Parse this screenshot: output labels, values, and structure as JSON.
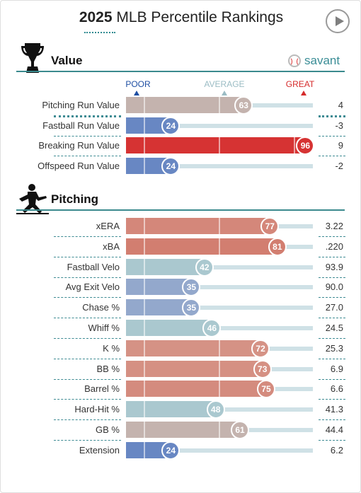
{
  "header": {
    "title_year": "2025",
    "title_rest": "MLB Percentile Rankings"
  },
  "brand": {
    "name": "savant",
    "color": "#3a8d96"
  },
  "scale": {
    "poor": "POOR",
    "average": "AVERAGE",
    "great": "GREAT",
    "poor_color": "#1f4fa3",
    "average_color": "#9bbcc4",
    "great_color": "#d52b2b"
  },
  "icons": {
    "value_section": "trophy-icon",
    "pitching_section": "pitcher-icon",
    "play": "play-icon",
    "brand": "baseball-icon"
  },
  "chart_data": {
    "type": "bar",
    "x_range": [
      0,
      100
    ],
    "sections": [
      {
        "title": "Value",
        "rows": [
          {
            "label": "Pitching Run Value",
            "percentile": 63,
            "value": "4"
          },
          {
            "label": "Fastball Run Value",
            "percentile": 24,
            "value": "-3"
          },
          {
            "label": "Breaking Run Value",
            "percentile": 96,
            "value": "9"
          },
          {
            "label": "Offspeed Run Value",
            "percentile": 24,
            "value": "-2"
          }
        ]
      },
      {
        "title": "Pitching",
        "rows": [
          {
            "label": "xERA",
            "percentile": 77,
            "value": "3.22"
          },
          {
            "label": "xBA",
            "percentile": 81,
            "value": ".220"
          },
          {
            "label": "Fastball Velo",
            "percentile": 42,
            "value": "93.9"
          },
          {
            "label": "Avg Exit Velo",
            "percentile": 35,
            "value": "90.0"
          },
          {
            "label": "Chase %",
            "percentile": 35,
            "value": "27.0"
          },
          {
            "label": "Whiff %",
            "percentile": 46,
            "value": "24.5"
          },
          {
            "label": "K %",
            "percentile": 72,
            "value": "25.3"
          },
          {
            "label": "BB %",
            "percentile": 73,
            "value": "6.9"
          },
          {
            "label": "Barrel %",
            "percentile": 75,
            "value": "6.6"
          },
          {
            "label": "Hard-Hit %",
            "percentile": 48,
            "value": "41.3"
          },
          {
            "label": "GB %",
            "percentile": 61,
            "value": "44.4"
          },
          {
            "label": "Extension",
            "percentile": 24,
            "value": "6.2"
          }
        ]
      }
    ]
  }
}
